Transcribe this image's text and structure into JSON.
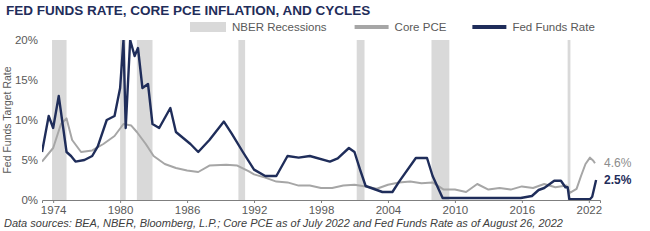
{
  "chart_data": {
    "type": "line",
    "title": "FED FUNDS RATE, CORE PCE INFLATION, AND CYCLES",
    "y_label": "Fed Funds Target Rate",
    "note": "Data sources: BEA, NBER, Bloomberg, L.P.; Core PCE as of July 2022 and Fed Funds Rate as of August 26, 2022",
    "legend": "top",
    "grid": false,
    "xlim": [
      1973,
      2023
    ],
    "xticks": [
      1974,
      1980,
      1986,
      1992,
      1998,
      2004,
      2010,
      2016,
      2022
    ],
    "ylim": [
      0,
      20
    ],
    "yticks": [
      {
        "value": 0,
        "label": "0%"
      },
      {
        "value": 5,
        "label": "5%"
      },
      {
        "value": 10,
        "label": "10%"
      },
      {
        "value": 15,
        "label": "15%"
      },
      {
        "value": 20,
        "label": "20%"
      }
    ],
    "recessions": {
      "name": "NBER Recessions",
      "color": "#d9d9d9",
      "periods": [
        [
          1973.9,
          1975.2
        ],
        [
          1980.0,
          1980.5
        ],
        [
          1981.5,
          1982.9
        ],
        [
          1990.6,
          1991.2
        ],
        [
          2001.2,
          2001.9
        ],
        [
          2007.9,
          2009.5
        ],
        [
          2020.1,
          2020.35
        ]
      ]
    },
    "series": [
      {
        "name": "Core PCE",
        "color": "#a6a6a6",
        "end_label": "4.6%",
        "x": [
          1973.0,
          1974.0,
          1974.7,
          1975.2,
          1975.7,
          1976.5,
          1977.5,
          1978.5,
          1979.5,
          1980.3,
          1981.0,
          1981.5,
          1982.3,
          1983.0,
          1984.0,
          1985.0,
          1986.0,
          1987.0,
          1988.0,
          1989.5,
          1990.5,
          1991.5,
          1992.0,
          1993.0,
          1994.0,
          1995.0,
          1996.0,
          1997.0,
          1998.0,
          1999.0,
          2000.0,
          2001.0,
          2002.0,
          2003.0,
          2004.0,
          2005.0,
          2006.0,
          2007.0,
          2008.0,
          2009.0,
          2010.0,
          2011.0,
          2012.0,
          2013.0,
          2014.0,
          2015.0,
          2016.0,
          2017.0,
          2018.0,
          2019.0,
          2020.0,
          2020.3,
          2020.9,
          2021.3,
          2021.7,
          2022.1,
          2022.4,
          2022.55
        ],
        "values": [
          4.8,
          6.5,
          9.5,
          10.2,
          7.5,
          6.0,
          6.2,
          7.0,
          8.0,
          9.5,
          9.3,
          8.5,
          7.0,
          5.5,
          4.5,
          4.0,
          3.7,
          3.5,
          4.3,
          4.4,
          4.3,
          3.6,
          3.2,
          2.8,
          2.3,
          2.2,
          1.8,
          1.8,
          1.5,
          1.5,
          1.8,
          1.9,
          1.7,
          1.4,
          1.9,
          2.2,
          2.3,
          2.1,
          2.2,
          1.3,
          1.3,
          1.0,
          2.0,
          1.3,
          1.5,
          1.3,
          1.7,
          1.5,
          2.0,
          1.6,
          1.8,
          0.9,
          1.4,
          3.0,
          4.5,
          5.3,
          4.9,
          4.6
        ]
      },
      {
        "name": "Fed Funds Rate",
        "color": "#1f2d5a",
        "end_label": "2.5%",
        "x": [
          1973.0,
          1973.6,
          1974.0,
          1974.5,
          1974.9,
          1975.2,
          1975.6,
          1976.0,
          1976.8,
          1977.5,
          1978.0,
          1978.8,
          1979.5,
          1980.0,
          1980.3,
          1980.5,
          1980.9,
          1981.3,
          1981.6,
          1982.0,
          1982.5,
          1982.9,
          1983.5,
          1984.5,
          1985.0,
          1986.3,
          1987.0,
          1988.0,
          1989.3,
          1990.0,
          1991.0,
          1992.0,
          1993.0,
          1994.0,
          1995.0,
          1996.0,
          1997.0,
          1998.8,
          1999.5,
          2000.5,
          2001.0,
          2001.5,
          2002.0,
          2003.5,
          2004.4,
          2005.0,
          2006.5,
          2007.5,
          2008.0,
          2008.9,
          2015.9,
          2016.9,
          2017.5,
          2018.0,
          2018.9,
          2019.5,
          2019.9,
          2020.1,
          2020.25,
          2022.1,
          2022.3,
          2022.5,
          2022.65
        ],
        "values": [
          6.0,
          10.5,
          9.0,
          13.0,
          9.0,
          6.0,
          5.5,
          4.8,
          5.0,
          5.5,
          6.7,
          10.0,
          10.5,
          14.0,
          20.0,
          9.0,
          20.0,
          18.0,
          19.0,
          14.0,
          14.5,
          9.5,
          9.0,
          11.5,
          8.5,
          7.0,
          6.0,
          7.5,
          9.8,
          8.3,
          6.0,
          3.8,
          3.0,
          3.0,
          5.5,
          5.3,
          5.5,
          4.8,
          5.2,
          6.5,
          6.0,
          3.8,
          1.75,
          1.0,
          1.0,
          2.3,
          5.25,
          5.25,
          3.0,
          0.25,
          0.25,
          0.5,
          1.25,
          1.5,
          2.4,
          2.4,
          1.6,
          1.6,
          0.1,
          0.1,
          0.4,
          1.6,
          2.5
        ]
      }
    ]
  }
}
